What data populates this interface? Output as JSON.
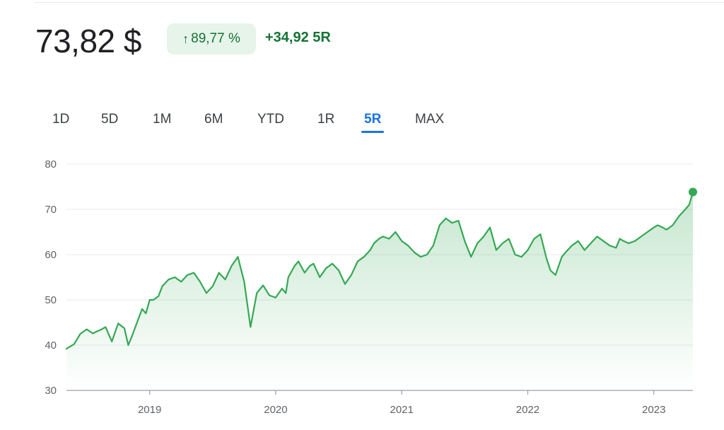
{
  "header": {
    "price": "73,82 $",
    "change_pct": "89,77 %",
    "change_abs": "+34,92 5R"
  },
  "range_tabs": [
    {
      "label": "1D",
      "active": false
    },
    {
      "label": "5D",
      "active": false
    },
    {
      "label": "1M",
      "active": false
    },
    {
      "label": "6M",
      "active": false
    },
    {
      "label": "YTD",
      "active": false
    },
    {
      "label": "1R",
      "active": false
    },
    {
      "label": "5R",
      "active": true
    },
    {
      "label": "MAX",
      "active": false
    }
  ],
  "colors": {
    "line": "#34a853",
    "accent": "#1a73e8",
    "positive_text": "#137333",
    "positive_bg": "#e6f4ea"
  },
  "chart_data": {
    "type": "area",
    "title": "",
    "xlabel": "",
    "ylabel": "",
    "ylim": [
      30,
      80
    ],
    "xlim": [
      2018.34,
      2023.31
    ],
    "yticks": [
      "30",
      "40",
      "50",
      "60",
      "70",
      "80"
    ],
    "xticks": [
      {
        "label": "2019",
        "value": 2019
      },
      {
        "label": "2020",
        "value": 2020
      },
      {
        "label": "2021",
        "value": 2021
      },
      {
        "label": "2022",
        "value": 2022
      },
      {
        "label": "2023",
        "value": 2023
      }
    ],
    "grid": true,
    "legend": "none",
    "series": [
      {
        "x": [
          2018.34,
          2018.4,
          2018.45,
          2018.5,
          2018.55,
          2018.58,
          2018.62,
          2018.65,
          2018.7,
          2018.75,
          2018.8,
          2018.83,
          2018.86,
          2018.9,
          2018.94,
          2018.97,
          2019.0,
          2019.03,
          2019.07,
          2019.1,
          2019.15,
          2019.2,
          2019.25,
          2019.3,
          2019.35,
          2019.4,
          2019.45,
          2019.5,
          2019.55,
          2019.6,
          2019.65,
          2019.7,
          2019.75,
          2019.8,
          2019.85,
          2019.9,
          2019.95,
          2020.0,
          2020.05,
          2020.08,
          2020.1,
          2020.13,
          2020.15,
          2020.18,
          2020.2,
          2020.23,
          2020.27,
          2020.3,
          2020.35,
          2020.4,
          2020.45,
          2020.5,
          2020.55,
          2020.6,
          2020.65,
          2020.7,
          2020.75,
          2020.78,
          2020.82,
          2020.85,
          2020.9,
          2020.95,
          2021.0,
          2021.05,
          2021.1,
          2021.15,
          2021.2,
          2021.25,
          2021.3,
          2021.35,
          2021.4,
          2021.45,
          2021.5,
          2021.55,
          2021.6,
          2021.65,
          2021.7,
          2021.75,
          2021.8,
          2021.85,
          2021.9,
          2021.95,
          2022.0,
          2022.05,
          2022.1,
          2022.15,
          2022.18,
          2022.22,
          2022.27,
          2022.3,
          2022.35,
          2022.4,
          2022.45,
          2022.5,
          2022.55,
          2022.6,
          2022.65,
          2022.7,
          2022.73,
          2022.76,
          2022.8,
          2022.85,
          2022.9,
          2022.95,
          2023.0,
          2023.03,
          2023.07,
          2023.1,
          2023.15,
          2023.2,
          2023.25,
          2023.28,
          2023.31
        ],
        "y": [
          39.2,
          40.2,
          42.5,
          43.5,
          42.6,
          43.0,
          43.5,
          44.0,
          40.8,
          44.8,
          43.7,
          40.0,
          42.0,
          45.0,
          48.0,
          47.0,
          50.0,
          50.0,
          50.8,
          53.0,
          54.5,
          55.0,
          54.0,
          55.5,
          56.0,
          54.0,
          51.5,
          53.0,
          56.0,
          54.5,
          57.5,
          59.5,
          54.0,
          44.0,
          51.5,
          53.2,
          51.0,
          50.5,
          52.5,
          51.5,
          55.0,
          56.5,
          57.5,
          58.5,
          57.5,
          56.0,
          57.5,
          58.0,
          55.0,
          57.0,
          58.0,
          56.5,
          53.5,
          55.5,
          58.5,
          59.5,
          61.0,
          62.5,
          63.5,
          64.0,
          63.5,
          65.0,
          63.0,
          62.0,
          60.5,
          59.5,
          60.0,
          62.0,
          66.5,
          68.0,
          67.0,
          67.5,
          63.0,
          59.5,
          62.5,
          64.0,
          66.0,
          61.0,
          62.5,
          63.5,
          60.0,
          59.5,
          61.0,
          63.5,
          64.5,
          59.0,
          56.5,
          55.5,
          59.5,
          60.5,
          62.0,
          63.0,
          61.0,
          62.5,
          64.0,
          63.0,
          62.0,
          61.5,
          63.5,
          63.0,
          62.5,
          63.0,
          64.0,
          65.0,
          66.0,
          66.5,
          66.0,
          65.5,
          66.5,
          68.5,
          70.0,
          71.0,
          73.82
        ]
      }
    ],
    "last_point_marker": true
  }
}
